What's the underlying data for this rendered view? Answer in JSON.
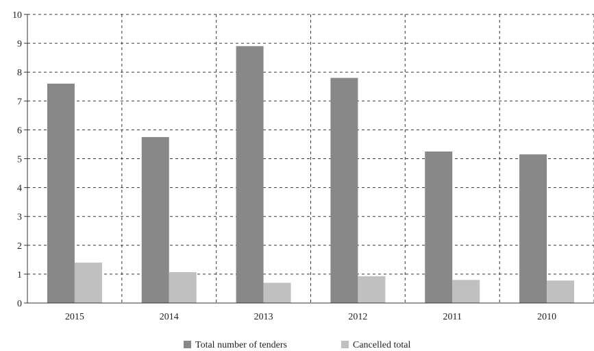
{
  "chart_data": {
    "type": "bar",
    "categories": [
      "2015",
      "2014",
      "2013",
      "2012",
      "2011",
      "2010"
    ],
    "series": [
      {
        "name": "Total number of tenders",
        "values": [
          7.6,
          5.75,
          8.9,
          7.8,
          5.25,
          5.15
        ],
        "color": "#888888"
      },
      {
        "name": "Cancelled total",
        "values": [
          1.4,
          1.07,
          0.7,
          0.93,
          0.8,
          0.78
        ],
        "color": "#c0c0c0"
      }
    ],
    "title": "",
    "xlabel": "",
    "ylabel": "",
    "ylim": [
      0,
      10
    ],
    "yticks": [
      "0",
      "1",
      "2",
      "3",
      "4",
      "5",
      "6",
      "7",
      "8",
      "9",
      "10"
    ],
    "grid": true,
    "grid_style": "dashed",
    "legend_position": "bottom-center"
  }
}
